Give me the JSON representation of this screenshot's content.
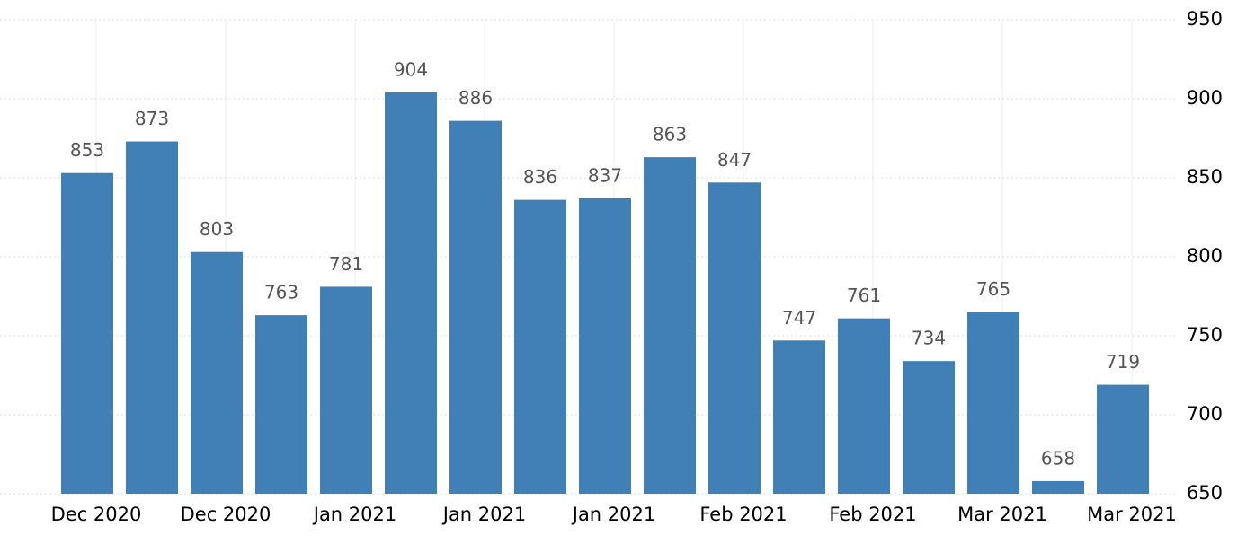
{
  "chart_data": {
    "type": "bar",
    "categories": [
      "Dec 2020",
      null,
      "Dec 2020",
      null,
      "Jan 2021",
      null,
      "Jan 2021",
      null,
      "Jan 2021",
      null,
      "Feb 2021",
      null,
      "Feb 2021",
      null,
      "Mar 2021",
      null,
      "Mar 2021"
    ],
    "values": [
      853,
      873,
      803,
      763,
      781,
      904,
      886,
      836,
      837,
      863,
      847,
      747,
      761,
      734,
      765,
      658,
      719
    ],
    "color": "#4180b7",
    "ylim": [
      650,
      950
    ],
    "yticks": [
      650,
      700,
      750,
      800,
      850,
      900,
      950
    ],
    "grid": true
  }
}
